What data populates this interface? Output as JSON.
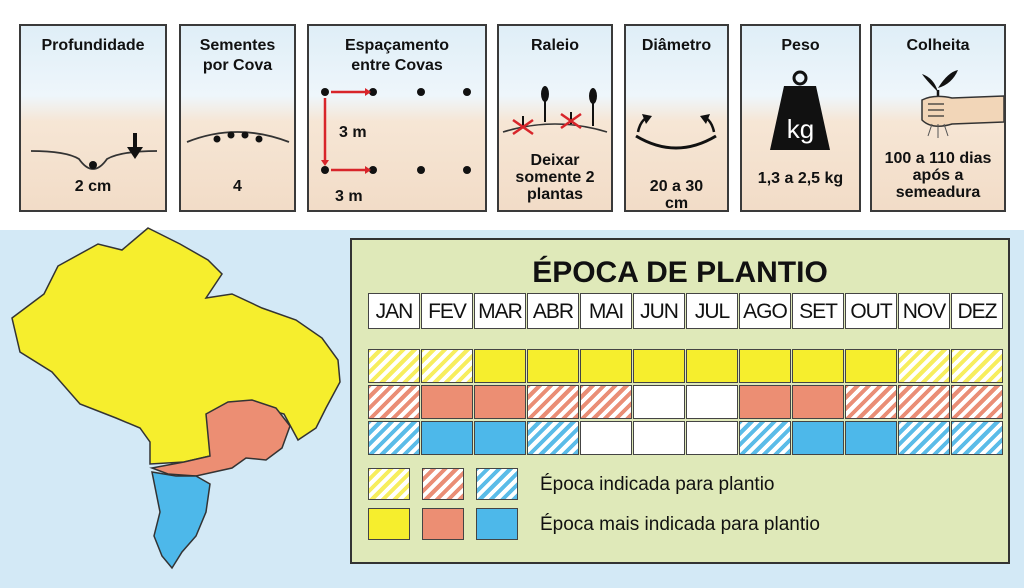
{
  "panels": [
    {
      "title": "Profundidade",
      "value": "2 cm"
    },
    {
      "title": "Sementes por Cova",
      "value": "4"
    },
    {
      "title": "Espaçamento entre Covas",
      "value_a": "3 m",
      "value_b": "3 m"
    },
    {
      "title": "Raleio",
      "value": "Deixar somente 2 plantas"
    },
    {
      "title": "Diâmetro",
      "value": "20 a 30 cm"
    },
    {
      "title": "Peso",
      "value": "1,3 a 2,5 kg",
      "weight_label": "kg"
    },
    {
      "title": "Colheita",
      "value": "100 a 110 dias após a semeadura"
    }
  ],
  "epoca": {
    "title": "ÉPOCA DE PLANTIO",
    "months": [
      "JAN",
      "FEV",
      "MAR",
      "ABR",
      "MAI",
      "JUN",
      "JUL",
      "AGO",
      "SET",
      "OUT",
      "NOV",
      "DEZ"
    ],
    "rows": [
      {
        "color": "yellow",
        "cells": [
          "indicada",
          "indicada",
          "mais",
          "mais",
          "mais",
          "mais",
          "mais",
          "mais",
          "mais",
          "mais",
          "indicada",
          "indicada"
        ]
      },
      {
        "color": "orange",
        "cells": [
          "indicada",
          "mais",
          "mais",
          "indicada",
          "indicada",
          "none",
          "none",
          "mais",
          "mais",
          "indicada",
          "indicada",
          "indicada"
        ]
      },
      {
        "color": "blue",
        "cells": [
          "indicada",
          "mais",
          "mais",
          "indicada",
          "none",
          "none",
          "none",
          "indicada",
          "mais",
          "mais",
          "indicada",
          "indicada"
        ]
      }
    ],
    "legend": {
      "indicada": "Época indicada para plantio",
      "mais": "Época mais indicada para plantio"
    }
  },
  "colors": {
    "yellow": "#f6ee2d",
    "orange": "#ec8e73",
    "blue": "#4db8ea"
  }
}
